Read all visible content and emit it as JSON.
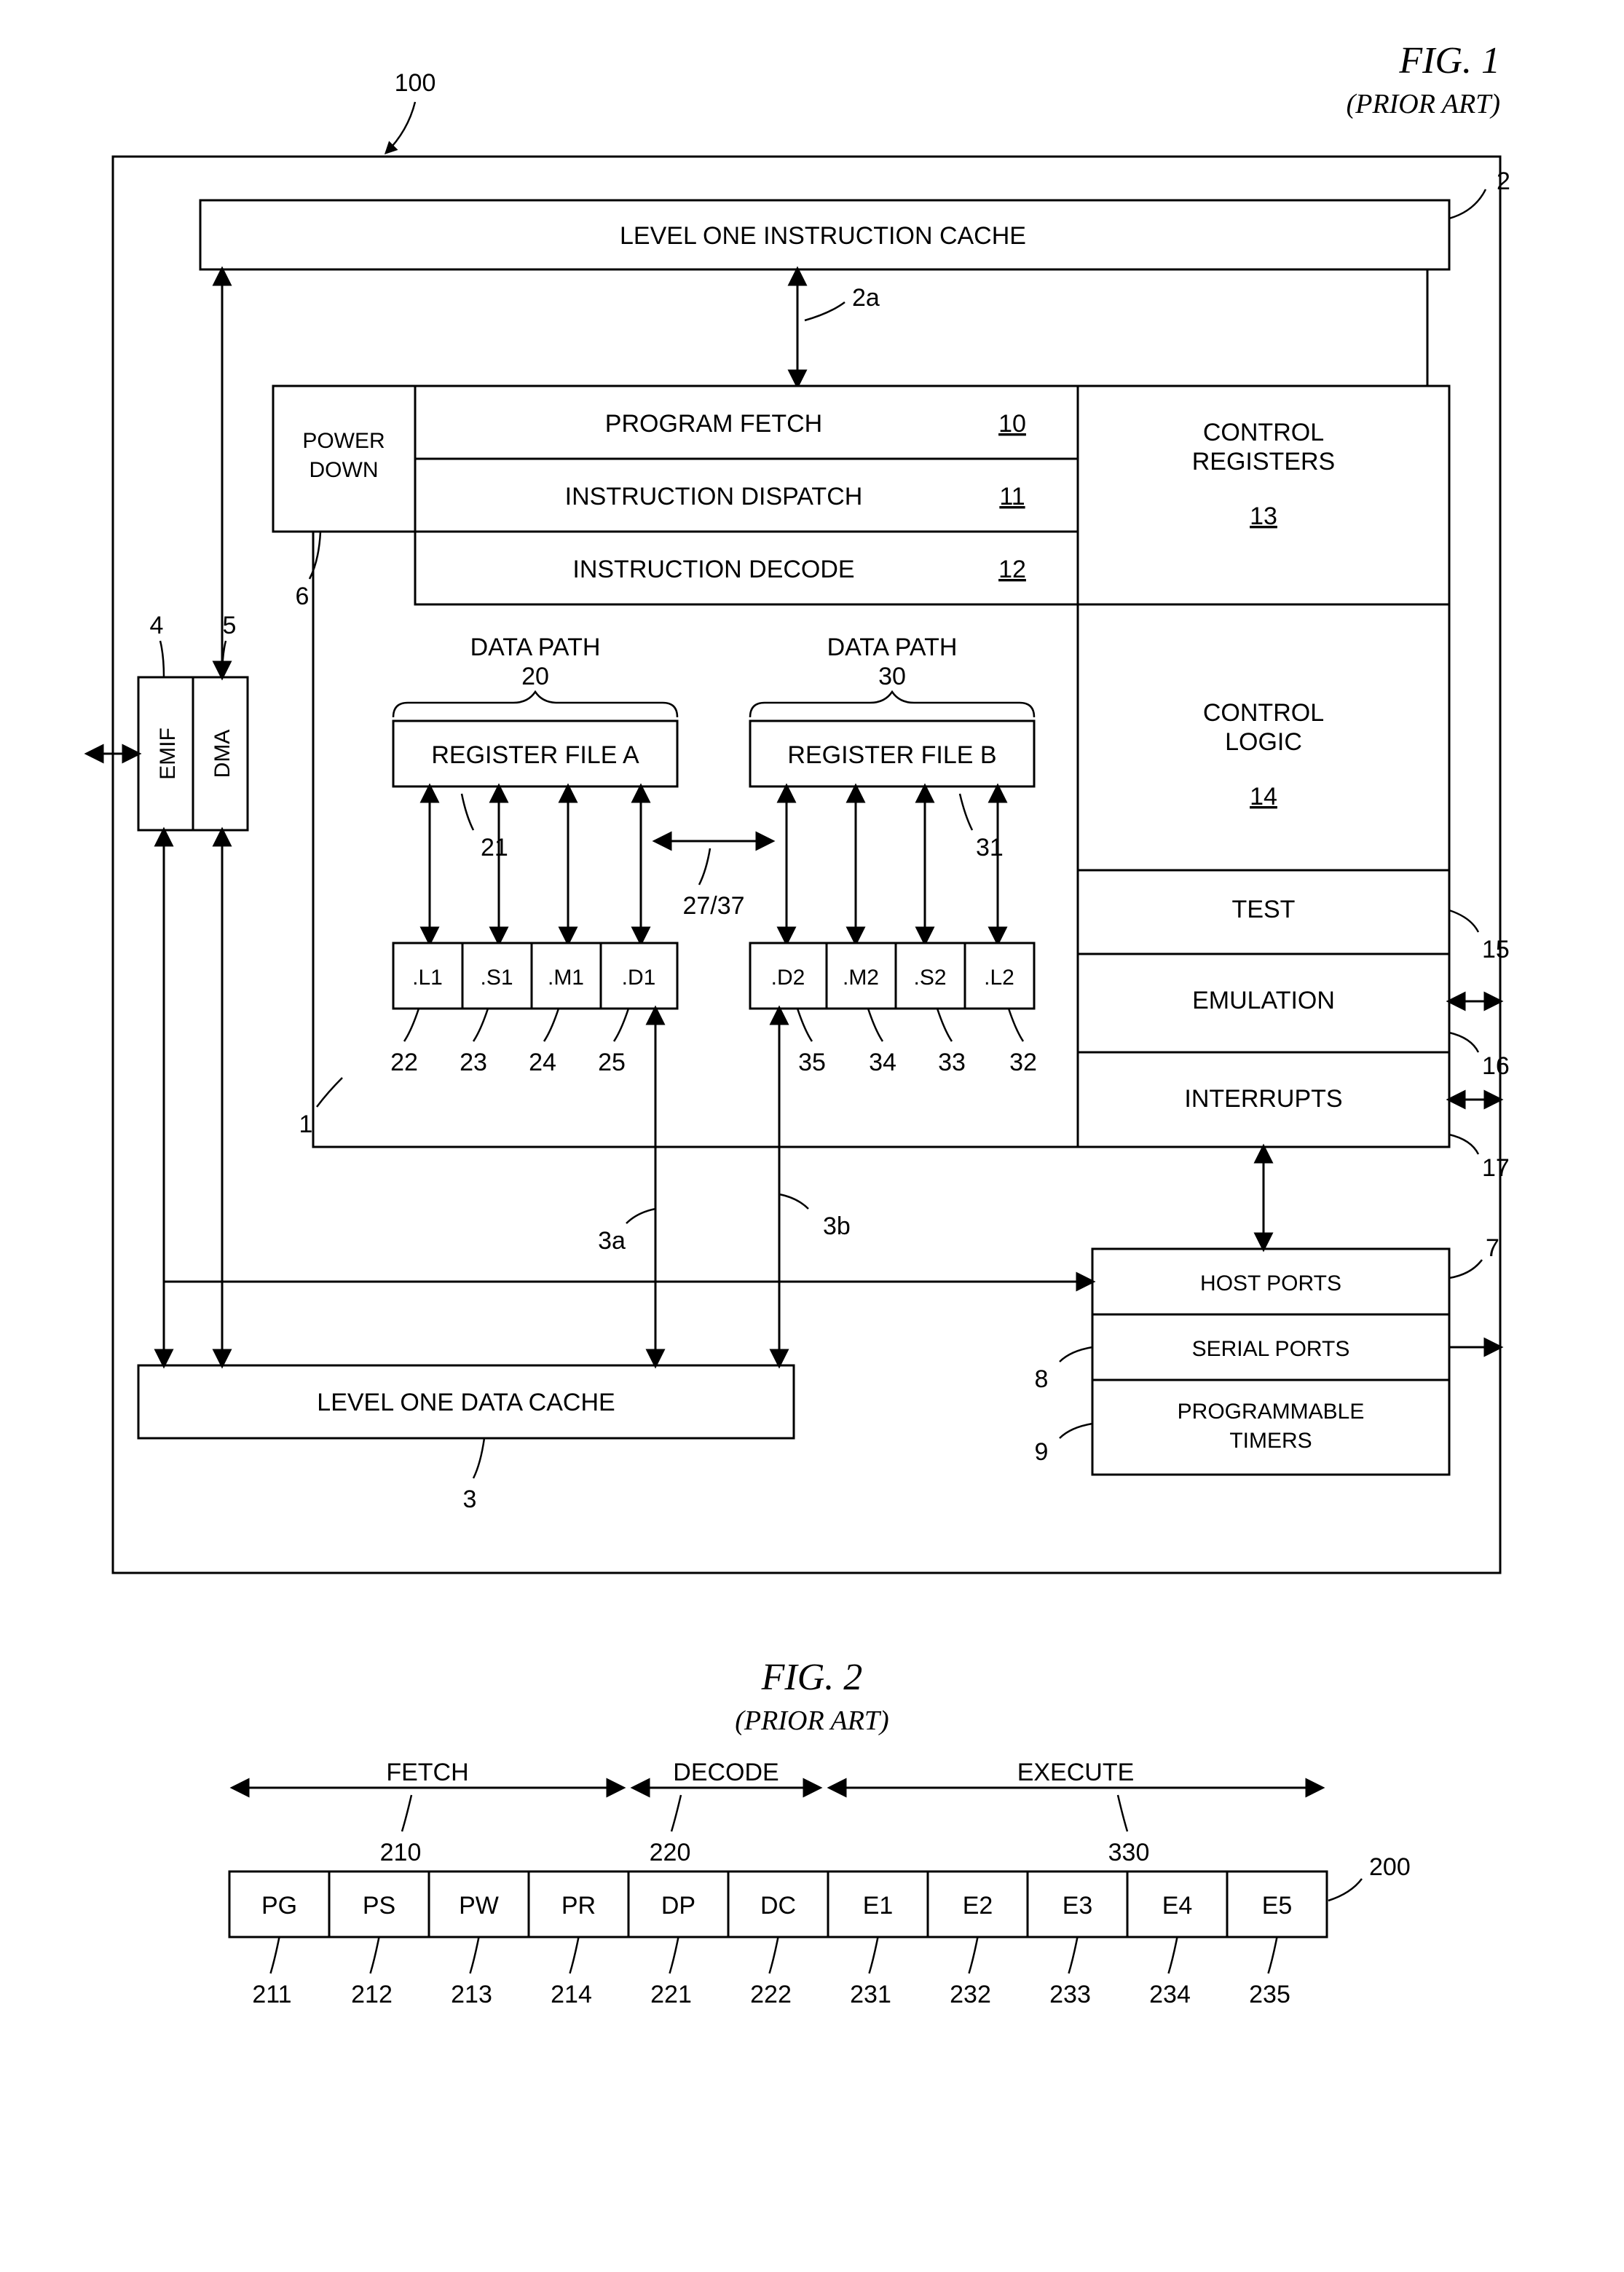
{
  "fig1": {
    "title": "FIG. 1",
    "subtitle": "(PRIOR ART)",
    "ref_100": "100",
    "l1i": "LEVEL ONE INSTRUCTION CACHE",
    "l1d": "LEVEL ONE DATA CACHE",
    "power_down": [
      "POWER",
      "DOWN"
    ],
    "prog_fetch": "PROGRAM FETCH",
    "inst_dispatch": "INSTRUCTION DISPATCH",
    "inst_decode": "INSTRUCTION DECODE",
    "ctrl_regs": [
      "CONTROL",
      "REGISTERS"
    ],
    "ctrl_logic": [
      "CONTROL",
      "LOGIC"
    ],
    "test": "TEST",
    "emulation": "EMULATION",
    "interrupts": "INTERRUPTS",
    "host_ports": "HOST PORTS",
    "serial_ports": "SERIAL PORTS",
    "prog_timers": [
      "PROGRAMMABLE",
      "TIMERS"
    ],
    "emif": "EMIF",
    "dma": "DMA",
    "dpA": [
      "DATA PATH",
      "20"
    ],
    "dpB": [
      "DATA PATH",
      "30"
    ],
    "regA": "REGISTER FILE A",
    "regB": "REGISTER FILE B",
    "unitsA": [
      ".L1",
      ".S1",
      ".M1",
      ".D1"
    ],
    "unitsB": [
      ".D2",
      ".M2",
      ".S2",
      ".L2"
    ],
    "refs": {
      "r1": "1",
      "r2": "2",
      "r2a": "2a",
      "r3": "3",
      "r3a": "3a",
      "r3b": "3b",
      "r4": "4",
      "r5": "5",
      "r6": "6",
      "r7": "7",
      "r8": "8",
      "r9": "9",
      "r10": "10",
      "r11": "11",
      "r12": "12",
      "r13": "13",
      "r14": "14",
      "r15": "15",
      "r16": "16",
      "r17": "17",
      "r21": "21",
      "r22": "22",
      "r23": "23",
      "r24": "24",
      "r25": "25",
      "r27_37": "27/37",
      "r31": "31",
      "r32": "32",
      "r33": "33",
      "r34": "34",
      "r35": "35"
    }
  },
  "fig2": {
    "title": "FIG. 2",
    "subtitle": "(PRIOR ART)",
    "ref_200": "200",
    "groups": [
      {
        "label": "FETCH",
        "ref": "210"
      },
      {
        "label": "DECODE",
        "ref": "220"
      },
      {
        "label": "EXECUTE",
        "ref": "330"
      }
    ],
    "cells": [
      "PG",
      "PS",
      "PW",
      "PR",
      "DP",
      "DC",
      "E1",
      "E2",
      "E3",
      "E4",
      "E5"
    ],
    "cell_refs": [
      "211",
      "212",
      "213",
      "214",
      "221",
      "222",
      "231",
      "232",
      "233",
      "234",
      "235"
    ]
  }
}
